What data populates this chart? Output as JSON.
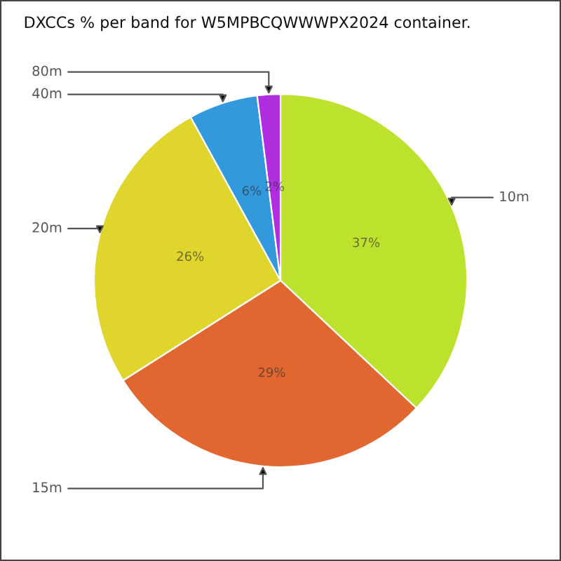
{
  "chart_data": {
    "type": "pie",
    "title": "DXCCs % per band for W5MPBCQWWWPX2024 container.",
    "categories": [
      "10m",
      "15m",
      "20m",
      "40m",
      "80m"
    ],
    "values": [
      37,
      29,
      26,
      6,
      2
    ],
    "colors": [
      "#bde22e",
      "#e2662f",
      "#e0d52d",
      "#3399dd",
      "#b02de0"
    ],
    "value_labels": [
      "37%",
      "29%",
      "26%",
      "6%",
      "2%"
    ]
  }
}
